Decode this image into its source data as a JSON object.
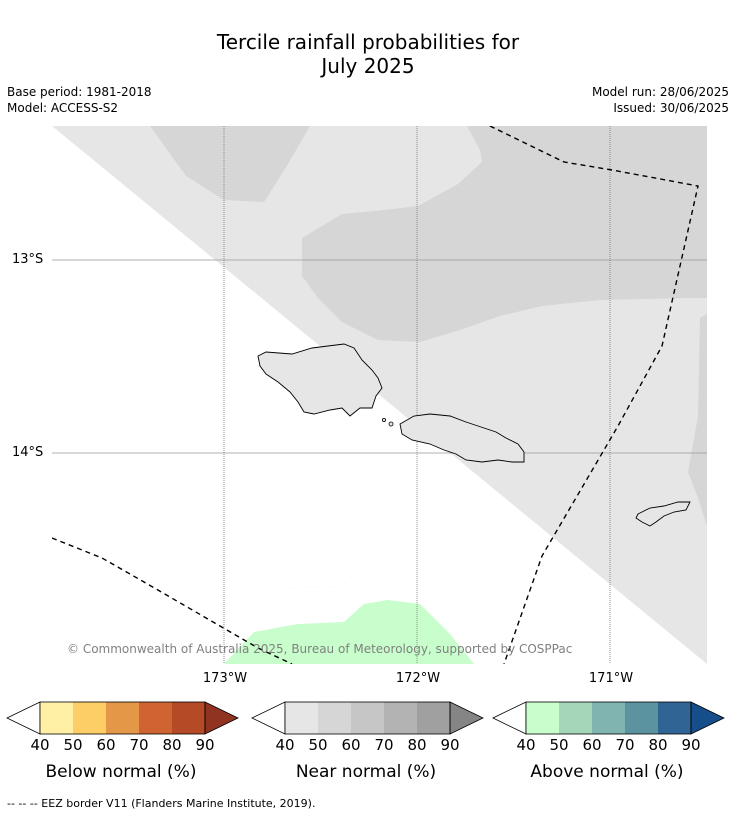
{
  "title_line1": "Tercile rainfall probabilities for",
  "title_line2": "July 2025",
  "meta": {
    "base_period": "Base period: 1981-2018",
    "model": "Model: ACCESS-S2",
    "model_run": "Model run: 28/06/2025",
    "issued": "Issued: 30/06/2025"
  },
  "axes": {
    "lat_labels": [
      "13°S",
      "14°S"
    ],
    "lon_labels": [
      "173°W",
      "172°W",
      "171°W"
    ]
  },
  "copyright": "© Commonwealth of Australia 2025, Bureau of Meteorology, supported by COSPPac",
  "colorbars": [
    {
      "label": "Below normal (%)",
      "ticks": [
        "40",
        "50",
        "60",
        "70",
        "80",
        "90"
      ],
      "colors": [
        "#fff0a6",
        "#fdce66",
        "#e49747",
        "#cf6331",
        "#b44b26",
        "#903421"
      ]
    },
    {
      "label": "Near normal (%)",
      "ticks": [
        "40",
        "50",
        "60",
        "70",
        "80",
        "90"
      ],
      "colors": [
        "#e6e6e6",
        "#d6d6d6",
        "#c6c6c6",
        "#b3b3b3",
        "#a0a0a0",
        "#858585"
      ]
    },
    {
      "label": "Above normal (%)",
      "ticks": [
        "40",
        "50",
        "60",
        "70",
        "80",
        "90"
      ],
      "colors": [
        "#c8fecb",
        "#a4d6b9",
        "#80b4b0",
        "#5b93a0",
        "#2f6495",
        "#164d8b"
      ]
    }
  ],
  "footer": "--  --  -- EEZ border V11 (Flanders Marine Institute, 2019)."
}
